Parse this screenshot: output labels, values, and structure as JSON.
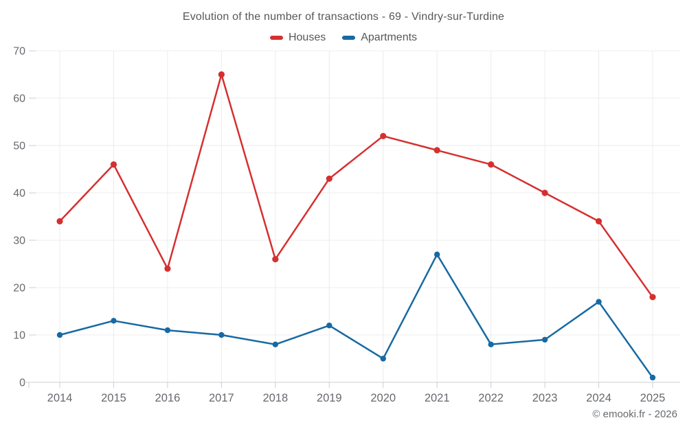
{
  "header": {
    "title": "Evolution of the number of transactions - 69 - Vindry-sur-Turdine"
  },
  "legend": {
    "items": [
      {
        "label": "Houses",
        "color": "#d62f2f"
      },
      {
        "label": "Apartments",
        "color": "#1769a3"
      }
    ]
  },
  "footer": {
    "copyright": "© emooki.fr - 2026"
  },
  "theme": {
    "background": "#ffffff",
    "grid_color": "#ececec",
    "axis_color": "#cccccc",
    "tick_label_color": "#66696e",
    "title_color": "#54575b"
  },
  "chart_data": {
    "type": "line",
    "title": "Evolution of the number of transactions - 69 - Vindry-sur-Turdine",
    "categories": [
      "2014",
      "2015",
      "2016",
      "2017",
      "2018",
      "2019",
      "2020",
      "2021",
      "2022",
      "2023",
      "2024",
      "2025"
    ],
    "series": [
      {
        "name": "Houses",
        "color": "#d62f2f",
        "values": [
          34,
          46,
          24,
          65,
          26,
          43,
          52,
          49,
          46,
          40,
          34,
          18
        ]
      },
      {
        "name": "Apartments",
        "color": "#1769a3",
        "values": [
          10,
          13,
          11,
          10,
          8,
          12,
          5,
          27,
          8,
          9,
          17,
          1
        ]
      }
    ],
    "xlabel": "",
    "ylabel": "",
    "ylim": [
      0,
      70
    ],
    "yticks": [
      0,
      10,
      20,
      30,
      40,
      50,
      60,
      70
    ],
    "grid": true,
    "legend_position": "top",
    "annotation": "© emooki.fr - 2026"
  }
}
